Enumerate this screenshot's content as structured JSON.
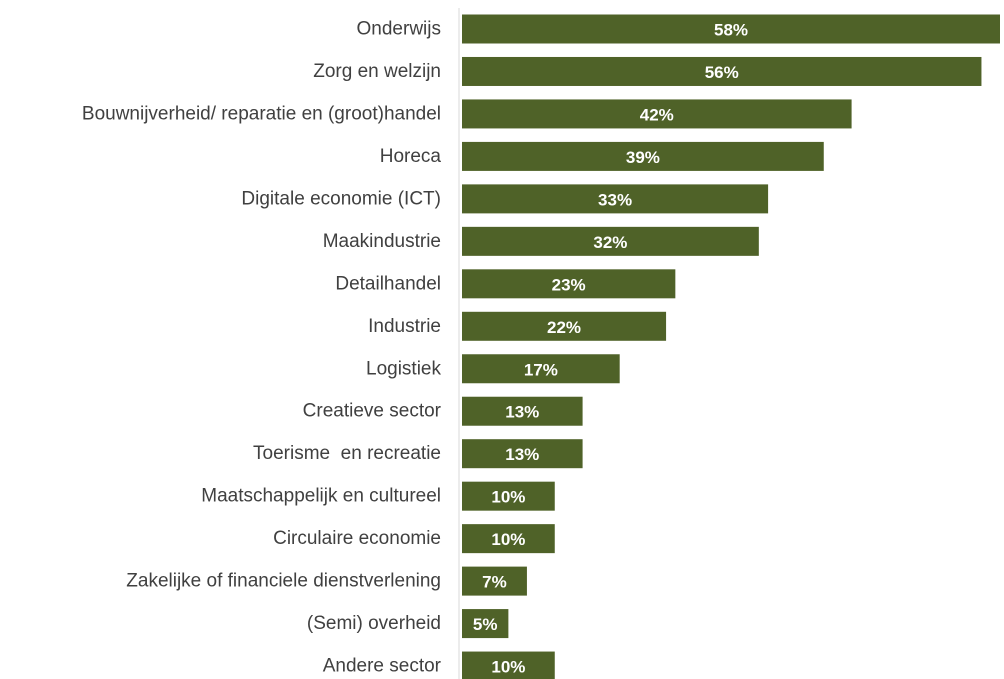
{
  "chart_data": {
    "type": "bar",
    "orientation": "horizontal",
    "categories": [
      "Onderwijs",
      "Zorg en welzijn",
      "Bouwnijverheid/ reparatie en (groot)handel",
      "Horeca",
      "Digitale economie (ICT)",
      "Maakindustrie",
      "Detailhandel",
      "Industrie",
      "Logistiek",
      "Creatieve sector",
      "Toerisme  en recreatie",
      "Maatschappelijk en cultureel",
      "Circulaire economie",
      "Zakelijke of financiele dienstverlening",
      "(Semi) overheid",
      "Andere sector"
    ],
    "values": [
      0.58,
      0.56,
      0.42,
      0.39,
      0.33,
      0.32,
      0.23,
      0.22,
      0.17,
      0.13,
      0.13,
      0.1,
      0.1,
      0.07,
      0.05,
      0.1
    ],
    "data_labels": [
      "58%",
      "56%",
      "42%",
      "39%",
      "33%",
      "32%",
      "23%",
      "22%",
      "17%",
      "13%",
      "13%",
      "10%",
      "10%",
      "7%",
      "5%",
      "10%"
    ],
    "xlim": [
      0,
      0.58
    ],
    "grid": false,
    "legend": "none",
    "bar_color": "#4f6228",
    "axis_color": "#d9d9d9",
    "label_color": "#404040",
    "data_label_color": "#ffffff"
  }
}
